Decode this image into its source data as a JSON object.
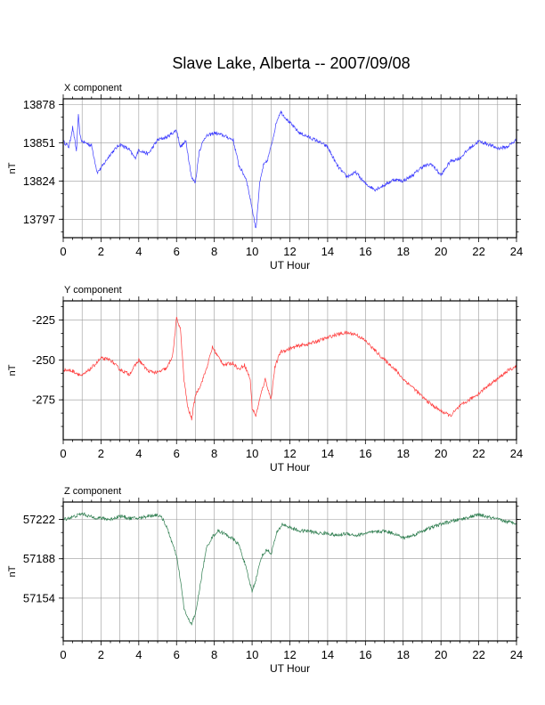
{
  "title": "Slave Lake, Alberta -- 2007/09/08",
  "chart_data": [
    {
      "type": "line",
      "panel_label": "X component",
      "xlabel": "UT Hour",
      "ylabel": "nT",
      "xlim": [
        0,
        24
      ],
      "ylim": [
        13784,
        13882
      ],
      "xticks": [
        0,
        2,
        4,
        6,
        8,
        10,
        12,
        14,
        16,
        18,
        20,
        22,
        24
      ],
      "yticks": [
        13797,
        13824,
        13851,
        13878
      ],
      "grid": true,
      "color": "#3a3aff",
      "x": [
        0,
        0.3,
        0.5,
        0.7,
        0.8,
        0.9,
        1.0,
        1.5,
        1.8,
        2.0,
        2.5,
        3.0,
        3.5,
        3.8,
        4.0,
        4.5,
        5.0,
        5.5,
        6.0,
        6.2,
        6.5,
        6.8,
        7.0,
        7.2,
        7.5,
        8.0,
        8.5,
        9.0,
        9.3,
        9.7,
        10.0,
        10.2,
        10.4,
        10.6,
        10.8,
        11.0,
        11.3,
        11.5,
        12.0,
        12.5,
        13.0,
        13.5,
        14.0,
        14.5,
        15.0,
        15.5,
        16.0,
        16.5,
        17.0,
        17.5,
        18.0,
        18.5,
        19.0,
        19.5,
        20.0,
        20.5,
        21.0,
        21.5,
        22.0,
        22.5,
        23.0,
        23.5,
        24.0
      ],
      "y": [
        13852,
        13848,
        13862,
        13845,
        13870,
        13855,
        13852,
        13849,
        13830,
        13833,
        13843,
        13850,
        13846,
        13840,
        13846,
        13843,
        13853,
        13855,
        13860,
        13848,
        13852,
        13826,
        13823,
        13845,
        13855,
        13858,
        13856,
        13853,
        13835,
        13825,
        13805,
        13790,
        13822,
        13835,
        13838,
        13848,
        13866,
        13873,
        13865,
        13858,
        13855,
        13852,
        13848,
        13835,
        13827,
        13830,
        13822,
        13818,
        13821,
        13825,
        13824,
        13828,
        13834,
        13836,
        13828,
        13838,
        13840,
        13847,
        13852,
        13850,
        13847,
        13848,
        13853
      ]
    },
    {
      "type": "line",
      "panel_label": "Y component",
      "xlabel": "UT Hour",
      "ylabel": "nT",
      "xlim": [
        0,
        24
      ],
      "ylim": [
        -300,
        -213
      ],
      "xticks": [
        0,
        2,
        4,
        6,
        8,
        10,
        12,
        14,
        16,
        18,
        20,
        22,
        24
      ],
      "yticks": [
        -225,
        -250,
        -275
      ],
      "grid": true,
      "color": "#ff3a3a",
      "x": [
        0,
        0.5,
        1.0,
        1.5,
        2.0,
        2.5,
        3.0,
        3.5,
        4.0,
        4.5,
        5.0,
        5.5,
        5.8,
        6.0,
        6.2,
        6.4,
        6.6,
        6.8,
        7.0,
        7.3,
        7.6,
        7.9,
        8.2,
        8.5,
        9.0,
        9.3,
        9.6,
        9.9,
        10.0,
        10.2,
        10.5,
        10.7,
        11.0,
        11.2,
        11.5,
        12.0,
        12.5,
        13.0,
        13.5,
        14.0,
        14.5,
        15.0,
        15.5,
        16.0,
        16.5,
        17.0,
        17.5,
        18.0,
        18.5,
        19.0,
        19.5,
        20.0,
        20.5,
        21.0,
        21.5,
        22.0,
        22.5,
        23.0,
        23.5,
        24.0
      ],
      "y": [
        -256,
        -257,
        -260,
        -255,
        -249,
        -250,
        -256,
        -259,
        -250,
        -257,
        -258,
        -255,
        -247,
        -224,
        -230,
        -263,
        -280,
        -287,
        -272,
        -265,
        -255,
        -242,
        -248,
        -253,
        -252,
        -256,
        -253,
        -262,
        -280,
        -285,
        -270,
        -262,
        -275,
        -255,
        -245,
        -243,
        -241,
        -240,
        -238,
        -236,
        -234,
        -233,
        -234,
        -238,
        -244,
        -250,
        -255,
        -262,
        -267,
        -273,
        -278,
        -282,
        -285,
        -279,
        -275,
        -271,
        -266,
        -262,
        -257,
        -254
      ]
    },
    {
      "type": "line",
      "panel_label": "Z component",
      "xlabel": "UT Hour",
      "ylabel": "nT",
      "xlim": [
        0,
        24
      ],
      "ylim": [
        57117,
        57237
      ],
      "xticks": [
        0,
        2,
        4,
        6,
        8,
        10,
        12,
        14,
        16,
        18,
        20,
        22,
        24
      ],
      "yticks": [
        57154,
        57188,
        57222
      ],
      "grid": true,
      "color": "#2e7d4f",
      "x": [
        0,
        0.5,
        1.0,
        1.5,
        2.0,
        2.5,
        3.0,
        3.5,
        4.0,
        4.5,
        5.0,
        5.3,
        5.6,
        6.0,
        6.2,
        6.4,
        6.6,
        6.8,
        7.0,
        7.2,
        7.4,
        7.6,
        7.9,
        8.2,
        8.5,
        9.0,
        9.3,
        9.6,
        9.8,
        10.0,
        10.2,
        10.5,
        10.8,
        11.0,
        11.3,
        11.6,
        12.0,
        12.5,
        13.0,
        13.5,
        14.0,
        14.5,
        15.0,
        15.5,
        16.0,
        16.5,
        17.0,
        17.5,
        18.0,
        18.5,
        19.0,
        19.5,
        20.0,
        20.5,
        21.0,
        21.5,
        22.0,
        22.5,
        23.0,
        23.5,
        24.0
      ],
      "y": [
        57222,
        57224,
        57227,
        57224,
        57223,
        57222,
        57225,
        57223,
        57223,
        57225,
        57226,
        57222,
        57210,
        57190,
        57170,
        57145,
        57136,
        57132,
        57140,
        57160,
        57180,
        57198,
        57207,
        57212,
        57210,
        57205,
        57200,
        57185,
        57172,
        57160,
        57170,
        57190,
        57196,
        57192,
        57210,
        57218,
        57215,
        57212,
        57212,
        57210,
        57210,
        57208,
        57210,
        57208,
        57210,
        57211,
        57212,
        57210,
        57206,
        57208,
        57212,
        57215,
        57218,
        57220,
        57222,
        57224,
        57226,
        57224,
        57222,
        57220,
        57219
      ]
    }
  ]
}
